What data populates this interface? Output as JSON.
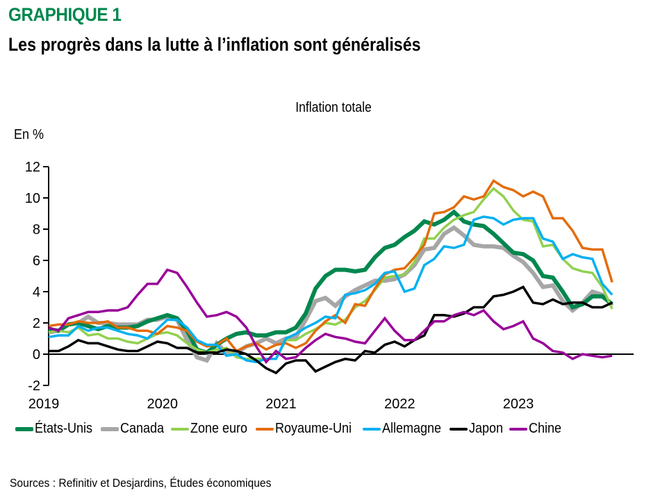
{
  "header": {
    "figure_label": "GRAPHIQUE 1",
    "title": "Les progrès dans la lutte à l’inflation sont généralisés"
  },
  "footer": {
    "sources": "Sources : Refinitiv et Desjardins, Études économiques"
  },
  "chart_data": {
    "type": "line",
    "title": "Inflation totale",
    "ylabel": "En %",
    "xlabel": "",
    "ylim": [
      -2,
      12
    ],
    "yticks": [
      -2,
      0,
      2,
      4,
      6,
      8,
      10,
      12
    ],
    "xticks": [
      "2019",
      "2020",
      "2021",
      "2022",
      "2023"
    ],
    "x_start": "2019-01",
    "x_frequency": "monthly",
    "legend_position": "bottom",
    "grid": false,
    "series": [
      {
        "name": "États-Unis",
        "color": "#00874e",
        "weight": "thick",
        "values": [
          1.6,
          1.5,
          1.9,
          2.0,
          1.8,
          1.6,
          1.8,
          1.7,
          1.7,
          1.8,
          2.1,
          2.3,
          2.5,
          2.3,
          1.5,
          0.3,
          0.1,
          0.6,
          1.0,
          1.3,
          1.4,
          1.2,
          1.2,
          1.4,
          1.4,
          1.7,
          2.6,
          4.2,
          5.0,
          5.4,
          5.4,
          5.3,
          5.4,
          6.2,
          6.8,
          7.0,
          7.5,
          7.9,
          8.5,
          8.3,
          8.6,
          9.1,
          8.5,
          8.3,
          8.2,
          7.7,
          7.1,
          6.5,
          6.4,
          6.0,
          5.0,
          4.9,
          4.0,
          3.0,
          3.2,
          3.7,
          3.7,
          3.2
        ]
      },
      {
        "name": "Canada",
        "color": "#a6a6a6",
        "weight": "thick",
        "values": [
          1.4,
          1.5,
          1.9,
          2.0,
          2.4,
          2.0,
          2.0,
          1.9,
          1.9,
          1.9,
          2.2,
          2.2,
          2.4,
          2.2,
          0.9,
          -0.2,
          -0.4,
          0.7,
          0.1,
          0.1,
          0.5,
          0.7,
          1.0,
          0.7,
          1.0,
          1.1,
          2.2,
          3.4,
          3.6,
          3.1,
          3.7,
          4.1,
          4.4,
          4.7,
          4.7,
          4.8,
          5.1,
          5.7,
          6.7,
          6.8,
          7.7,
          8.1,
          7.6,
          7.0,
          6.9,
          6.9,
          6.8,
          6.3,
          5.9,
          5.2,
          4.3,
          4.4,
          3.4,
          2.8,
          3.3,
          4.0,
          3.8,
          3.1
        ]
      },
      {
        "name": "Zone euro",
        "color": "#92d050",
        "weight": "normal",
        "values": [
          1.4,
          1.5,
          1.4,
          1.7,
          1.2,
          1.3,
          1.0,
          1.0,
          0.8,
          0.7,
          1.0,
          1.3,
          1.4,
          1.2,
          0.7,
          0.3,
          0.1,
          0.3,
          0.4,
          -0.2,
          -0.3,
          -0.3,
          -0.3,
          -0.3,
          0.9,
          0.9,
          1.3,
          1.6,
          2.0,
          1.9,
          2.2,
          3.0,
          3.4,
          4.1,
          4.9,
          5.0,
          5.1,
          5.9,
          7.4,
          7.4,
          8.1,
          8.6,
          8.9,
          9.1,
          9.9,
          10.6,
          10.1,
          9.2,
          8.6,
          8.5,
          6.9,
          7.0,
          6.1,
          5.5,
          5.3,
          5.2,
          4.3,
          2.9
        ]
      },
      {
        "name": "Royaume-Uni",
        "color": "#e46c0a",
        "weight": "normal",
        "values": [
          1.8,
          1.9,
          1.9,
          2.1,
          2.0,
          2.0,
          2.1,
          1.7,
          1.7,
          1.5,
          1.5,
          1.3,
          1.8,
          1.7,
          1.5,
          0.8,
          0.5,
          0.6,
          1.0,
          0.2,
          0.5,
          0.7,
          0.3,
          0.6,
          0.7,
          0.4,
          0.7,
          1.5,
          2.1,
          2.5,
          2.0,
          3.2,
          3.1,
          4.2,
          5.1,
          5.4,
          5.5,
          6.2,
          7.0,
          9.0,
          9.1,
          9.4,
          10.1,
          9.9,
          10.1,
          11.1,
          10.7,
          10.5,
          10.1,
          10.4,
          10.1,
          8.7,
          8.7,
          7.9,
          6.8,
          6.7,
          6.7,
          4.6
        ]
      },
      {
        "name": "Allemagne",
        "color": "#00b0f0",
        "weight": "normal",
        "values": [
          1.1,
          1.2,
          1.2,
          1.8,
          1.5,
          1.7,
          1.7,
          1.5,
          1.3,
          1.2,
          1.0,
          1.6,
          2.2,
          2.2,
          1.7,
          0.9,
          0.6,
          0.6,
          -0.1,
          0.0,
          -0.4,
          -0.5,
          -0.3,
          -0.3,
          1.0,
          1.3,
          1.7,
          2.0,
          2.4,
          2.3,
          3.8,
          3.9,
          4.1,
          4.5,
          5.2,
          5.3,
          4.0,
          4.2,
          5.7,
          6.1,
          6.9,
          6.8,
          7.0,
          8.6,
          8.8,
          8.7,
          8.3,
          8.6,
          8.7,
          8.7,
          7.4,
          7.2,
          6.1,
          6.4,
          6.2,
          6.1,
          4.5,
          3.8
        ]
      },
      {
        "name": "Japon",
        "color": "#000000",
        "weight": "normal",
        "values": [
          0.2,
          0.2,
          0.5,
          0.9,
          0.7,
          0.7,
          0.5,
          0.3,
          0.2,
          0.2,
          0.5,
          0.8,
          0.7,
          0.4,
          0.4,
          0.1,
          0.1,
          0.1,
          0.3,
          0.2,
          0.0,
          -0.4,
          -0.9,
          -1.2,
          -0.6,
          -0.4,
          -0.4,
          -1.1,
          -0.8,
          -0.5,
          -0.3,
          -0.4,
          0.2,
          0.1,
          0.6,
          0.8,
          0.5,
          0.9,
          1.2,
          2.5,
          2.5,
          2.4,
          2.6,
          3.0,
          3.0,
          3.7,
          3.8,
          4.0,
          4.3,
          3.3,
          3.2,
          3.5,
          3.2,
          3.3,
          3.3,
          3.0,
          3.0,
          3.3
        ]
      },
      {
        "name": "Chine",
        "color": "#990099",
        "weight": "normal",
        "values": [
          1.7,
          1.5,
          2.3,
          2.5,
          2.7,
          2.7,
          2.8,
          2.8,
          3.0,
          3.8,
          4.5,
          4.5,
          5.4,
          5.2,
          4.3,
          3.3,
          2.4,
          2.5,
          2.7,
          2.4,
          1.7,
          0.5,
          -0.5,
          0.2,
          -0.3,
          -0.2,
          0.4,
          0.9,
          1.3,
          1.1,
          1.0,
          0.8,
          0.7,
          1.5,
          2.3,
          1.5,
          0.9,
          0.9,
          1.5,
          2.1,
          2.1,
          2.5,
          2.7,
          2.5,
          2.8,
          2.1,
          1.6,
          1.8,
          2.1,
          1.0,
          0.7,
          0.2,
          0.1,
          -0.3,
          0.0,
          -0.1,
          -0.2,
          -0.1
        ]
      }
    ]
  }
}
